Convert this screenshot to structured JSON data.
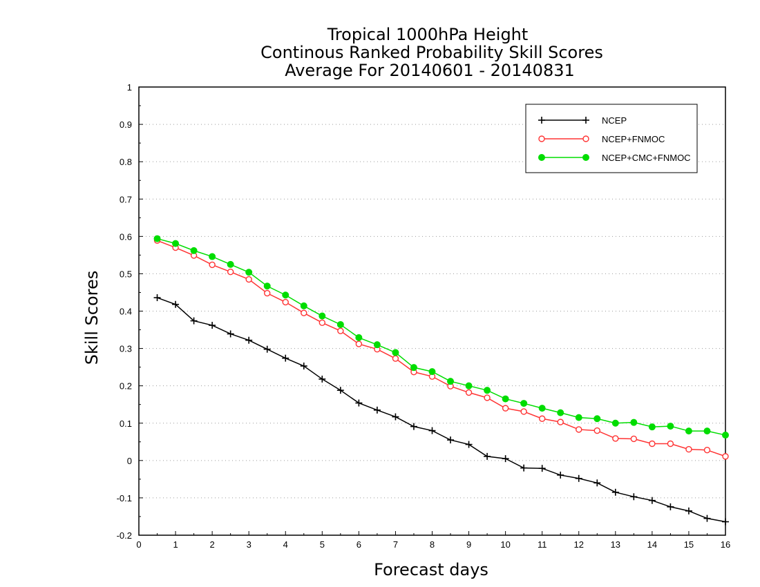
{
  "chart_data": {
    "type": "line",
    "title": [
      "Tropical 1000hPa Height",
      "Continous Ranked Probability Skill Scores",
      "Average For 20140601 - 20140831"
    ],
    "xlabel": "Forecast days",
    "ylabel": "Skill Scores",
    "xlim": [
      0,
      16
    ],
    "ylim": [
      -0.2,
      1
    ],
    "xticks": [
      "0",
      "1",
      "2",
      "3",
      "4",
      "5",
      "6",
      "7",
      "8",
      "9",
      "10",
      "11",
      "12",
      "13",
      "14",
      "15",
      "16"
    ],
    "yticks": [
      "-0.2",
      "-0.1",
      "0",
      "0.1",
      "0.2",
      "0.3",
      "0.4",
      "0.5",
      "0.6",
      "0.7",
      "0.8",
      "0.9",
      "1"
    ],
    "grid": "horizontal dotted",
    "legend_position": "top-right",
    "x": [
      0.5,
      1,
      1.5,
      2,
      2.5,
      3,
      3.5,
      4,
      4.5,
      5,
      5.5,
      6,
      6.5,
      7,
      7.5,
      8,
      8.5,
      9,
      9.5,
      10,
      10.5,
      11,
      11.5,
      12,
      12.5,
      13,
      13.5,
      14,
      14.5,
      15,
      15.5,
      16
    ],
    "series": [
      {
        "name": "NCEP",
        "color": "#000000",
        "marker": "plus",
        "values": [
          0.436,
          0.418,
          0.374,
          0.362,
          0.339,
          0.322,
          0.298,
          0.274,
          0.253,
          0.218,
          0.188,
          0.154,
          0.135,
          0.117,
          0.091,
          0.08,
          0.055,
          0.043,
          0.011,
          0.005,
          -0.02,
          -0.021,
          -0.039,
          -0.048,
          -0.06,
          -0.085,
          -0.097,
          -0.107,
          -0.124,
          -0.135,
          -0.155,
          -0.164
        ]
      },
      {
        "name": "NCEP+FNMOC",
        "color": "#ff3333",
        "marker": "open-circle",
        "values": [
          0.589,
          0.57,
          0.549,
          0.524,
          0.505,
          0.485,
          0.448,
          0.424,
          0.395,
          0.369,
          0.347,
          0.312,
          0.298,
          0.273,
          0.237,
          0.225,
          0.199,
          0.182,
          0.168,
          0.14,
          0.131,
          0.112,
          0.103,
          0.083,
          0.08,
          0.059,
          0.058,
          0.045,
          0.045,
          0.03,
          0.028,
          0.011
        ]
      },
      {
        "name": "NCEP+CMC+FNMOC",
        "color": "#00dd00",
        "marker": "filled-circle",
        "values": [
          0.594,
          0.581,
          0.562,
          0.546,
          0.525,
          0.504,
          0.467,
          0.443,
          0.414,
          0.387,
          0.364,
          0.329,
          0.31,
          0.289,
          0.249,
          0.238,
          0.212,
          0.2,
          0.188,
          0.165,
          0.153,
          0.14,
          0.128,
          0.115,
          0.112,
          0.1,
          0.102,
          0.09,
          0.092,
          0.079,
          0.079,
          0.068
        ]
      }
    ]
  }
}
